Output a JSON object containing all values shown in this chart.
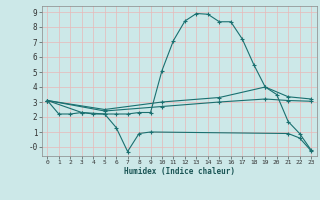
{
  "bg_color": "#cce8e8",
  "grid_color": "#e8b8b8",
  "line_color": "#1a7070",
  "xlabel": "Humidex (Indice chaleur)",
  "ylim": [
    -0.6,
    9.4
  ],
  "xlim": [
    -0.5,
    23.5
  ],
  "yticks": [
    0,
    1,
    2,
    3,
    4,
    5,
    6,
    7,
    8,
    9
  ],
  "ytick_labels": [
    "-0",
    "1",
    "2",
    "3",
    "4",
    "5",
    "6",
    "7",
    "8",
    "9"
  ],
  "xticks": [
    0,
    1,
    2,
    3,
    4,
    5,
    6,
    7,
    8,
    9,
    10,
    11,
    12,
    13,
    14,
    15,
    16,
    17,
    18,
    19,
    20,
    21,
    22,
    23
  ],
  "curves": [
    {
      "x": [
        0,
        1,
        2,
        3,
        4,
        5,
        6,
        7,
        8,
        9,
        10,
        11,
        12,
        13,
        14,
        15,
        16,
        17,
        18,
        19,
        20,
        21,
        22,
        23
      ],
      "y": [
        3.1,
        2.2,
        2.2,
        2.3,
        2.2,
        2.2,
        2.2,
        2.2,
        2.3,
        2.3,
        5.1,
        7.1,
        8.4,
        8.9,
        8.85,
        8.35,
        8.35,
        7.2,
        5.5,
        4.0,
        3.5,
        1.7,
        0.9,
        -0.2
      ]
    },
    {
      "x": [
        0,
        3,
        5,
        6,
        7,
        8,
        9,
        21,
        22,
        23
      ],
      "y": [
        3.1,
        2.3,
        2.2,
        1.3,
        -0.3,
        0.9,
        1.0,
        0.9,
        0.6,
        -0.25
      ]
    },
    {
      "x": [
        0,
        5,
        10,
        15,
        19,
        21,
        23
      ],
      "y": [
        3.1,
        2.5,
        3.0,
        3.3,
        4.0,
        3.35,
        3.2
      ]
    },
    {
      "x": [
        0,
        5,
        10,
        15,
        19,
        21,
        23
      ],
      "y": [
        3.1,
        2.4,
        2.7,
        3.0,
        3.2,
        3.1,
        3.05
      ]
    }
  ]
}
